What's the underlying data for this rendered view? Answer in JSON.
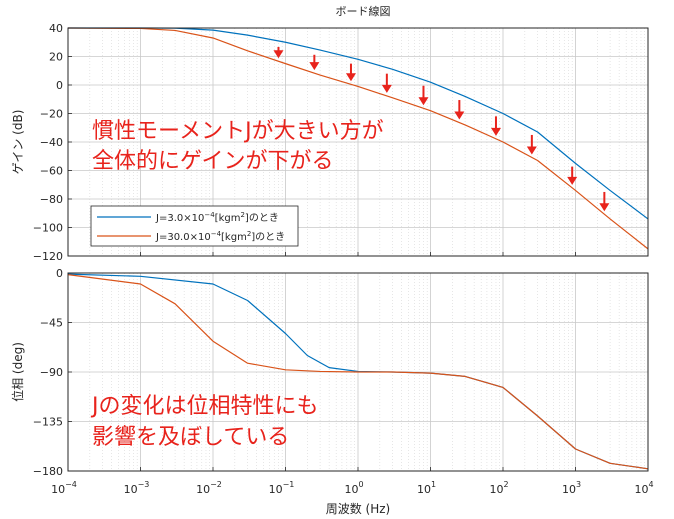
{
  "chart_data": {
    "type": "line",
    "title": "ボード線図",
    "xlabel": "周波数 (Hz)",
    "xscale": "log",
    "xlim": [
      0.0001,
      10000
    ],
    "x_ticks": [
      {
        "base": "10",
        "exp": "−4"
      },
      {
        "base": "10",
        "exp": "−3"
      },
      {
        "base": "10",
        "exp": "−2"
      },
      {
        "base": "10",
        "exp": "−1"
      },
      {
        "base": "10",
        "exp": "0"
      },
      {
        "base": "10",
        "exp": "1"
      },
      {
        "base": "10",
        "exp": "2"
      },
      {
        "base": "10",
        "exp": "3"
      },
      {
        "base": "10",
        "exp": "4"
      }
    ],
    "grid": true,
    "series": [
      {
        "name": "J=3.0×10⁻⁴[kgm²]のとき",
        "color": "#0072bd"
      },
      {
        "name": "J=30.0×10⁻⁴[kgm²]のとき",
        "color": "#d95319"
      }
    ],
    "legend": {
      "placement": "bottom-left",
      "entries": [
        {
          "pre": "J=3.0×10",
          "sup1": "−4",
          "mid": "[kgm",
          "sup2": "2",
          "post": "]のとき"
        },
        {
          "pre": "J=30.0×10",
          "sup1": "−4",
          "mid": "[kgm",
          "sup2": "2",
          "post": "]のとき"
        }
      ]
    },
    "panels": [
      {
        "id": "gain",
        "ylabel": "ゲイン (dB)",
        "ylim": [
          -120,
          40
        ],
        "y_ticks": [
          40,
          20,
          0,
          -20,
          -40,
          -60,
          -80,
          -100,
          -120
        ],
        "y_tick_labels": [
          "40",
          "20",
          "0",
          "−20",
          "−40",
          "−60",
          "−80",
          "−100",
          "−120"
        ],
        "series": [
          {
            "name": "J=3.0×10⁻⁴[kgm²]のとき",
            "x": [
              0.0001,
              0.001,
              0.003,
              0.01,
              0.03,
              0.1,
              0.3,
              1,
              3,
              10,
              30,
              100,
              300,
              1000,
              3000,
              10000
            ],
            "y": [
              40,
              40,
              39.9,
              38.5,
              35,
              30,
              24.5,
              18,
              11,
              2,
              -8,
              -20,
              -33,
              -55,
              -74,
              -94
            ]
          },
          {
            "name": "J=30.0×10⁻⁴[kgm²]のとき",
            "x": [
              0.0001,
              0.001,
              0.003,
              0.01,
              0.03,
              0.1,
              0.3,
              1,
              3,
              10,
              30,
              100,
              300,
              1000,
              3000,
              10000
            ],
            "y": [
              40,
              39.7,
              38.3,
              33,
              24,
              15,
              7,
              -1,
              -9,
              -18,
              -28,
              -40,
              -53,
              -74,
              -94,
              -115
            ]
          }
        ],
        "arrows_x": [
          0.08,
          0.25,
          0.8,
          2.5,
          8,
          25,
          80,
          250,
          900,
          2500
        ],
        "annotation": [
          "慣性モーメントJが大きい方が",
          "全体的にゲインが下がる"
        ]
      },
      {
        "id": "phase",
        "ylabel": "位相 (deg)",
        "ylim": [
          -180,
          0
        ],
        "y_ticks": [
          0,
          -45,
          -90,
          -135,
          -180
        ],
        "y_tick_labels": [
          "0",
          "−45",
          "−90",
          "−135",
          "−180"
        ],
        "series": [
          {
            "name": "J=3.0×10⁻⁴[kgm²]のとき",
            "x": [
              0.0001,
              0.001,
              0.01,
              0.03,
              0.1,
              0.2,
              0.4,
              1,
              3,
              10,
              30,
              100,
              300,
              1000,
              3000,
              10000
            ],
            "y": [
              -1,
              -3,
              -10,
              -25,
              -55,
              -75,
              -86,
              -89.5,
              -90,
              -91,
              -94,
              -104,
              -130,
              -160,
              -173,
              -178
            ]
          },
          {
            "name": "J=30.0×10⁻⁴[kgm²]のとき",
            "x": [
              0.0001,
              0.001,
              0.003,
              0.01,
              0.03,
              0.1,
              0.3,
              1,
              3,
              10,
              30,
              100,
              300,
              1000,
              3000,
              10000
            ],
            "y": [
              -1.5,
              -10,
              -28,
              -62,
              -82,
              -88,
              -89.5,
              -90,
              -90,
              -91,
              -94,
              -104,
              -130,
              -160,
              -173,
              -178
            ]
          }
        ],
        "annotation": [
          "Jの変化は位相特性にも",
          "影響を及ぼしている"
        ]
      }
    ]
  }
}
